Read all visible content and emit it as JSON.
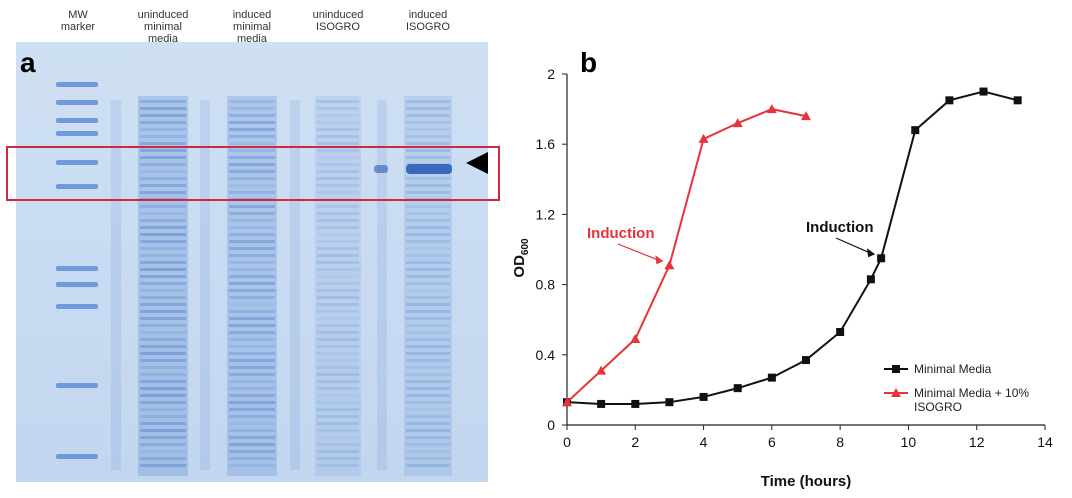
{
  "panel_a": {
    "letter": "a",
    "lanes": [
      {
        "lines": [
          "MW",
          "marker"
        ]
      },
      {
        "lines": [
          "uninduced",
          "minimal",
          "media"
        ]
      },
      {
        "lines": [
          "induced",
          "minimal",
          "media"
        ]
      },
      {
        "lines": [
          "uninduced",
          "ISOGRO"
        ]
      },
      {
        "lines": [
          "induced",
          "ISOGRO"
        ]
      }
    ],
    "colors": {
      "gel_bg": "#c9dcf2",
      "band": "#3f74c8",
      "highlight_box": "#d0283c",
      "arrowhead": "#000000"
    }
  },
  "panel_b": {
    "letter": "b"
  },
  "chart_data": {
    "type": "line",
    "xlabel": "Time (hours)",
    "ylabel_main": "OD",
    "ylabel_sub": "600",
    "xlim": [
      0,
      14
    ],
    "ylim": [
      0,
      2
    ],
    "xticks": [
      0,
      2,
      4,
      6,
      8,
      10,
      12,
      14
    ],
    "yticks": [
      0,
      0.4,
      0.8,
      1.2,
      1.6,
      2
    ],
    "ytick_labels": [
      "0",
      "0.4",
      "0.8",
      "1.2",
      "1.6",
      "2"
    ],
    "grid": false,
    "legend_placement": "bottom-right",
    "series": [
      {
        "name": "Minimal Media",
        "color": "#111111",
        "marker": "square",
        "x": [
          0,
          1,
          2,
          3,
          4,
          5,
          6,
          7,
          8,
          8.9,
          9.2,
          10.2,
          11.2,
          12.2,
          13.2
        ],
        "y": [
          0.13,
          0.12,
          0.12,
          0.13,
          0.16,
          0.21,
          0.27,
          0.37,
          0.53,
          0.83,
          0.95,
          1.68,
          1.85,
          1.9,
          1.85
        ]
      },
      {
        "name": "Minimal Media + 10% ISOGRO",
        "name_lines": [
          "Minimal Media + 10%",
          "ISOGRO"
        ],
        "color": "#e8333a",
        "marker": "triangle",
        "x": [
          0,
          1,
          2,
          3,
          4,
          5,
          6,
          7
        ],
        "y": [
          0.13,
          0.31,
          0.49,
          0.91,
          1.63,
          1.72,
          1.8,
          1.76
        ]
      }
    ],
    "annotations": [
      {
        "text": "Induction",
        "color": "#e8333a",
        "target": {
          "x": 3.0,
          "y": 0.91
        }
      },
      {
        "text": "Induction",
        "color": "#111111",
        "target": {
          "x": 9.2,
          "y": 0.95
        }
      }
    ]
  }
}
